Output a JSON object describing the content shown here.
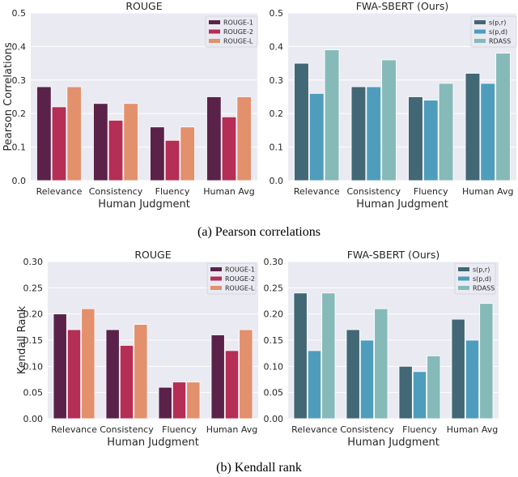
{
  "captions": {
    "a": "(a) Pearson correlations",
    "b": "(b) Kendall rank"
  },
  "chart_data": [
    {
      "type": "bar",
      "title": "ROUGE",
      "xlabel": "Human Judgment",
      "ylabel": "Pearson Correlations",
      "categories": [
        "Relevance",
        "Consistency",
        "Fluency",
        "Human Avg"
      ],
      "ylim": [
        0,
        0.5
      ],
      "yticks": [
        "0.0",
        "0.1",
        "0.2",
        "0.3",
        "0.4",
        "0.5"
      ],
      "grid": true,
      "legend": "top-right",
      "series": [
        {
          "name": "ROUGE-1",
          "color": "#5a2249",
          "values": [
            0.28,
            0.23,
            0.16,
            0.25
          ]
        },
        {
          "name": "ROUGE-2",
          "color": "#b52e55",
          "values": [
            0.22,
            0.18,
            0.12,
            0.19
          ]
        },
        {
          "name": "ROUGE-L",
          "color": "#e3906d",
          "values": [
            0.28,
            0.23,
            0.16,
            0.25
          ]
        }
      ]
    },
    {
      "type": "bar",
      "title": "FWA-SBERT (Ours)",
      "xlabel": "Human Judgment",
      "ylabel": "",
      "categories": [
        "Relevance",
        "Consistency",
        "Fluency",
        "Human Avg"
      ],
      "ylim": [
        0,
        0.5
      ],
      "yticks": [
        "0.0",
        "0.1",
        "0.2",
        "0.3",
        "0.4",
        "0.5"
      ],
      "grid": true,
      "legend": "top-right",
      "series": [
        {
          "name": "s(p,r)",
          "color": "#426775",
          "values": [
            0.35,
            0.28,
            0.25,
            0.32
          ]
        },
        {
          "name": "s(p,d)",
          "color": "#4f9dbd",
          "values": [
            0.26,
            0.28,
            0.24,
            0.29
          ]
        },
        {
          "name": "RDASS",
          "color": "#85bab9",
          "values": [
            0.39,
            0.36,
            0.29,
            0.38
          ]
        }
      ]
    },
    {
      "type": "bar",
      "title": "ROUGE",
      "xlabel": "Human Judgment",
      "ylabel": "Kendall Rank",
      "categories": [
        "Relevance",
        "Consistency",
        "Fluency",
        "Human Avg"
      ],
      "ylim": [
        0,
        0.3
      ],
      "yticks": [
        "0.00",
        "0.05",
        "0.10",
        "0.15",
        "0.20",
        "0.25",
        "0.30"
      ],
      "grid": true,
      "legend": "top-right",
      "series": [
        {
          "name": "ROUGE-1",
          "color": "#5a2249",
          "values": [
            0.2,
            0.17,
            0.06,
            0.16
          ]
        },
        {
          "name": "ROUGE-2",
          "color": "#b52e55",
          "values": [
            0.17,
            0.14,
            0.07,
            0.13
          ]
        },
        {
          "name": "ROUGE-L",
          "color": "#e3906d",
          "values": [
            0.21,
            0.18,
            0.07,
            0.17
          ]
        }
      ]
    },
    {
      "type": "bar",
      "title": "FWA-SBERT (Ours)",
      "xlabel": "Human Judgment",
      "ylabel": "",
      "categories": [
        "Relevance",
        "Consistency",
        "Fluency",
        "Human Avg"
      ],
      "ylim": [
        0,
        0.3
      ],
      "yticks": [
        "0.00",
        "0.05",
        "0.10",
        "0.15",
        "0.20",
        "0.25",
        "0.30"
      ],
      "grid": true,
      "legend": "top-right",
      "series": [
        {
          "name": "s(p,r)",
          "color": "#426775",
          "values": [
            0.24,
            0.17,
            0.1,
            0.19
          ]
        },
        {
          "name": "s(p,d)",
          "color": "#4f9dbd",
          "values": [
            0.13,
            0.15,
            0.09,
            0.15
          ]
        },
        {
          "name": "RDASS",
          "color": "#85bab9",
          "values": [
            0.24,
            0.21,
            0.12,
            0.22
          ]
        }
      ]
    }
  ]
}
